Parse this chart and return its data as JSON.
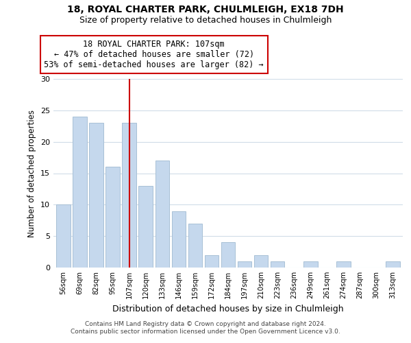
{
  "title1": "18, ROYAL CHARTER PARK, CHULMLEIGH, EX18 7DH",
  "title2": "Size of property relative to detached houses in Chulmleigh",
  "xlabel": "Distribution of detached houses by size in Chulmleigh",
  "ylabel": "Number of detached properties",
  "bar_labels": [
    "56sqm",
    "69sqm",
    "82sqm",
    "95sqm",
    "107sqm",
    "120sqm",
    "133sqm",
    "146sqm",
    "159sqm",
    "172sqm",
    "184sqm",
    "197sqm",
    "210sqm",
    "223sqm",
    "236sqm",
    "249sqm",
    "261sqm",
    "274sqm",
    "287sqm",
    "300sqm",
    "313sqm"
  ],
  "bar_values": [
    10,
    24,
    23,
    16,
    23,
    13,
    17,
    9,
    7,
    2,
    4,
    1,
    2,
    1,
    0,
    1,
    0,
    1,
    0,
    0,
    1
  ],
  "bar_color": "#c5d8ed",
  "bar_edge_color": "#a8c0d6",
  "marker_index": 4,
  "marker_line_color": "#cc0000",
  "ylim": [
    0,
    30
  ],
  "yticks": [
    0,
    5,
    10,
    15,
    20,
    25,
    30
  ],
  "annotation_line1": "18 ROYAL CHARTER PARK: 107sqm",
  "annotation_line2": "← 47% of detached houses are smaller (72)",
  "annotation_line3": "53% of semi-detached houses are larger (82) →",
  "annotation_box_color": "#ffffff",
  "annotation_box_edge": "#cc0000",
  "footer1": "Contains HM Land Registry data © Crown copyright and database right 2024.",
  "footer2": "Contains public sector information licensed under the Open Government Licence v3.0.",
  "bg_color": "#ffffff",
  "grid_color": "#d0dce8"
}
